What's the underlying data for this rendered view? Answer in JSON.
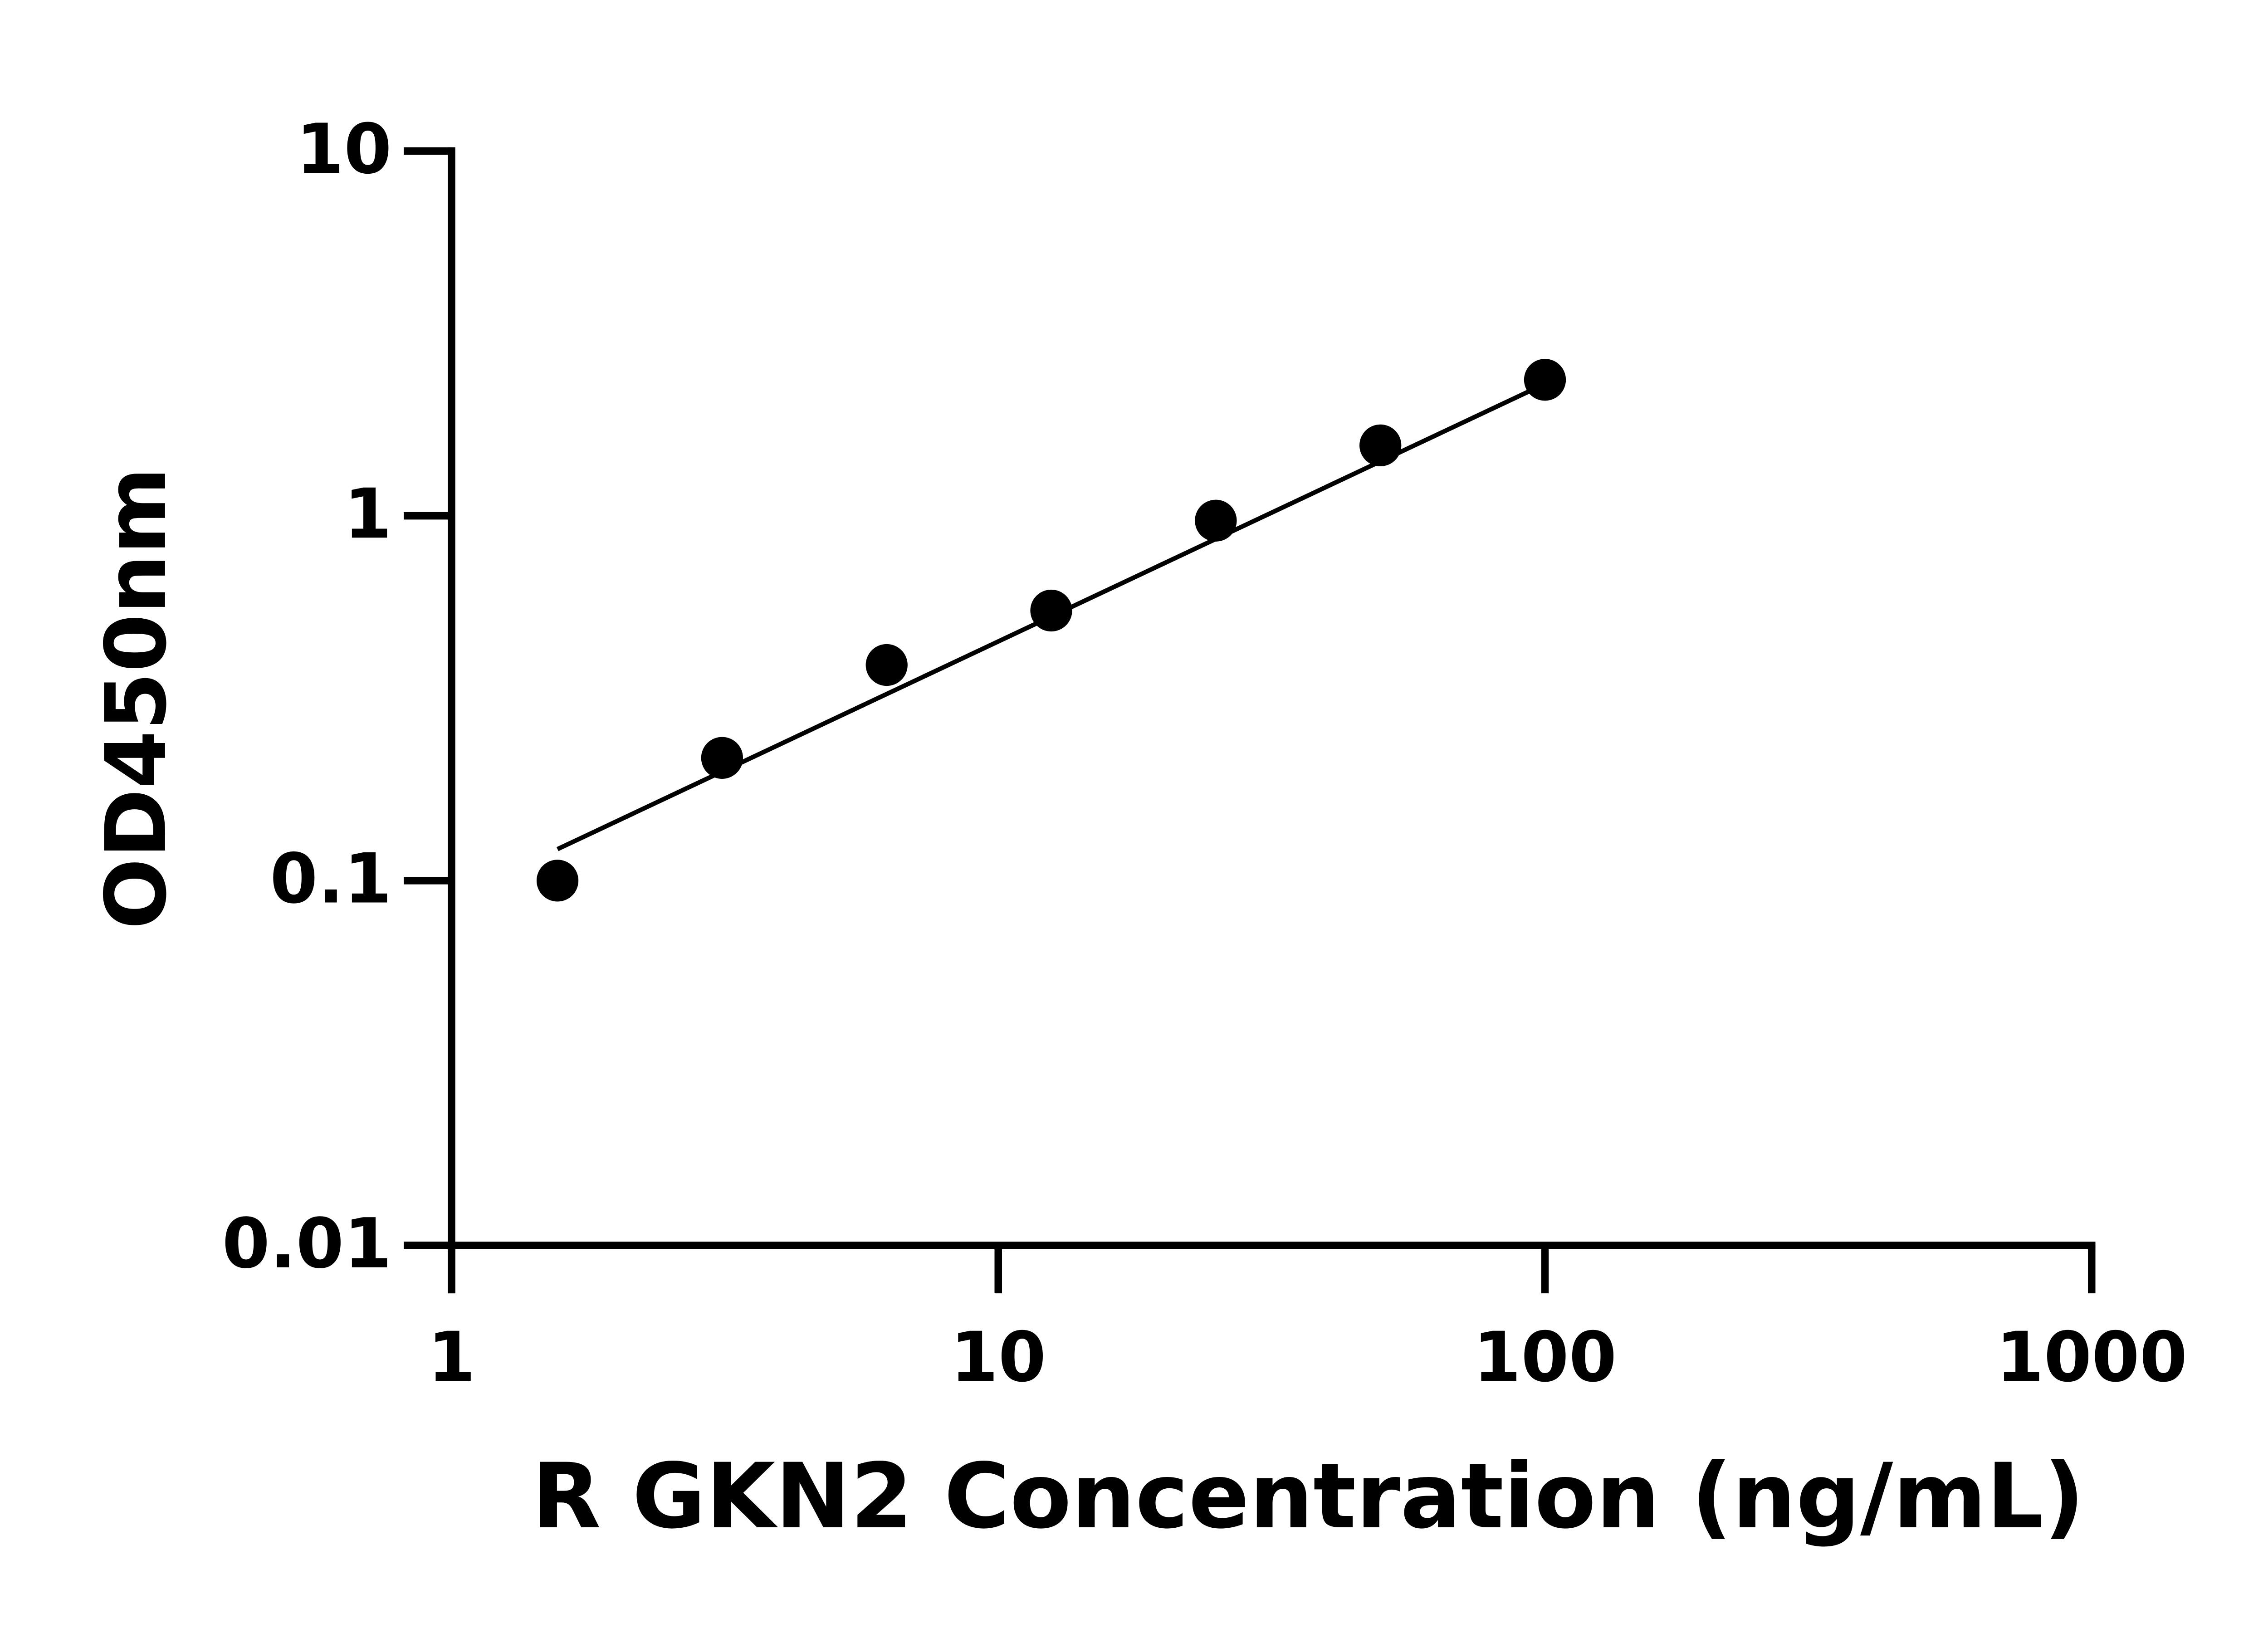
{
  "chart_data": {
    "type": "scatter",
    "x_label": "R GKN2 Concentration (ng/mL)",
    "y_label": "OD450nm",
    "x": [
      1.5625,
      3.125,
      6.25,
      12.5,
      25,
      50,
      100
    ],
    "values": [
      0.1,
      0.217,
      0.39,
      0.55,
      0.97,
      1.56,
      2.36
    ],
    "color": "#000000",
    "fit": {
      "x": [
        1.5625,
        100
      ],
      "values": [
        0.122,
        2.3
      ]
    },
    "xscale": "log",
    "yscale": "log",
    "xlim": [
      1,
      1000
    ],
    "ylim": [
      0.01,
      10
    ],
    "xticks": [
      1,
      10,
      100,
      1000
    ],
    "yticks": [
      0.01,
      0.1,
      1,
      10
    ]
  }
}
